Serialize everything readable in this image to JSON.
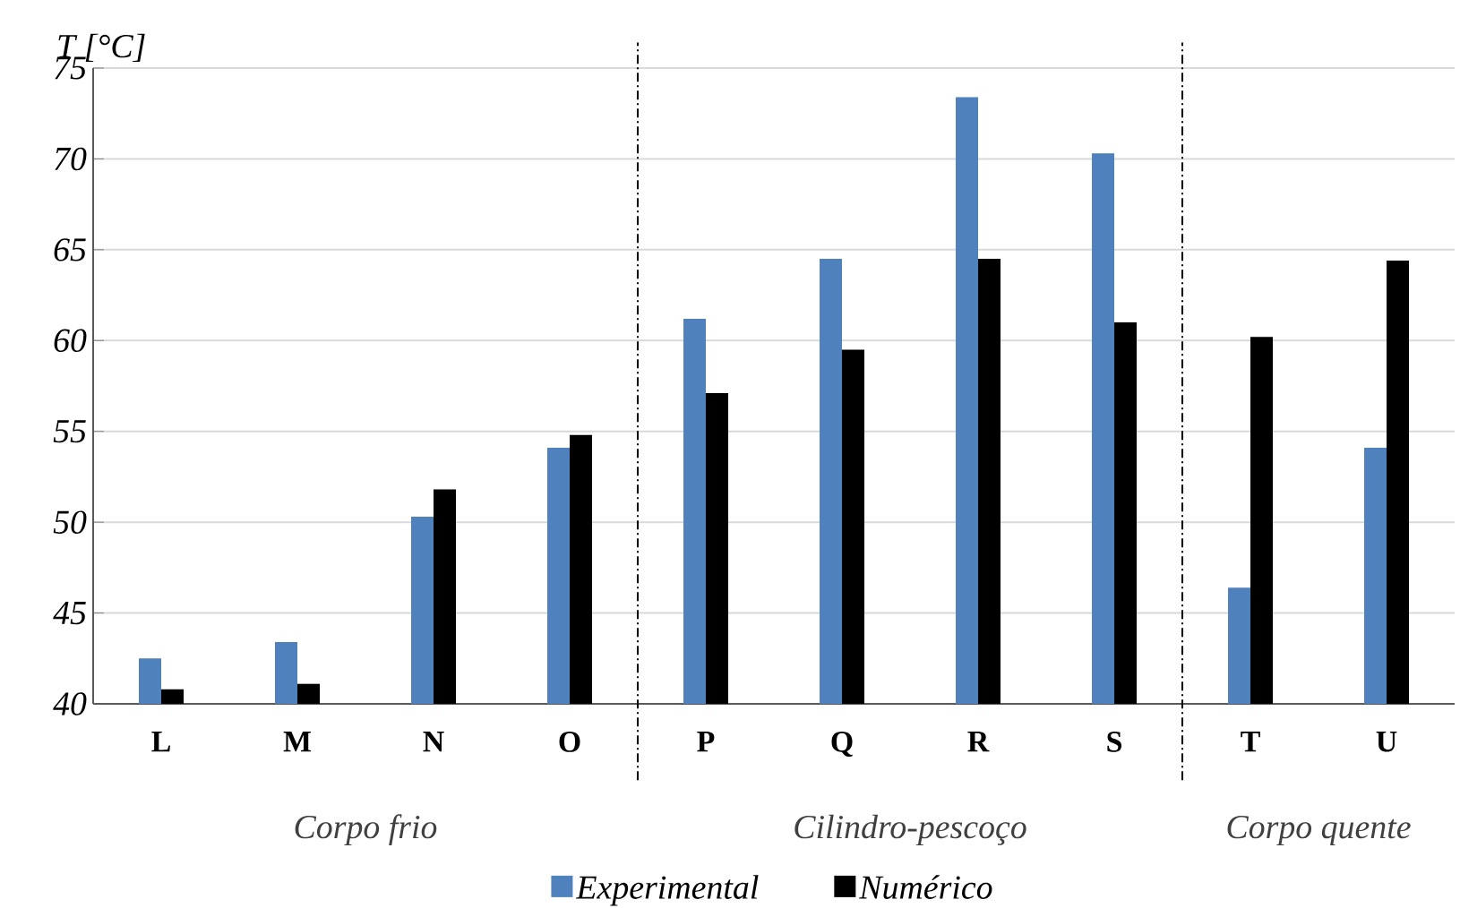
{
  "chart_data": {
    "type": "bar",
    "ylabel": "T [°C]",
    "categories": [
      "L",
      "M",
      "N",
      "O",
      "P",
      "Q",
      "R",
      "S",
      "T",
      "U"
    ],
    "series": [
      {
        "name": "Experimental",
        "color": "#4f81bd",
        "values": [
          42.5,
          43.4,
          50.3,
          54.1,
          61.2,
          64.5,
          73.4,
          70.3,
          46.4,
          54.1
        ]
      },
      {
        "name": "Numérico",
        "color": "#000000",
        "values": [
          40.8,
          41.1,
          51.8,
          54.8,
          57.1,
          59.5,
          64.5,
          61.0,
          60.2,
          64.4
        ]
      }
    ],
    "ylim": [
      40,
      75
    ],
    "yticks": [
      40,
      45,
      50,
      55,
      60,
      65,
      70,
      75
    ],
    "grid": "y",
    "legend": "bottom",
    "annotations": [
      "Corpo frio",
      "Cilindro-pescoço",
      "Corpo quente"
    ]
  }
}
